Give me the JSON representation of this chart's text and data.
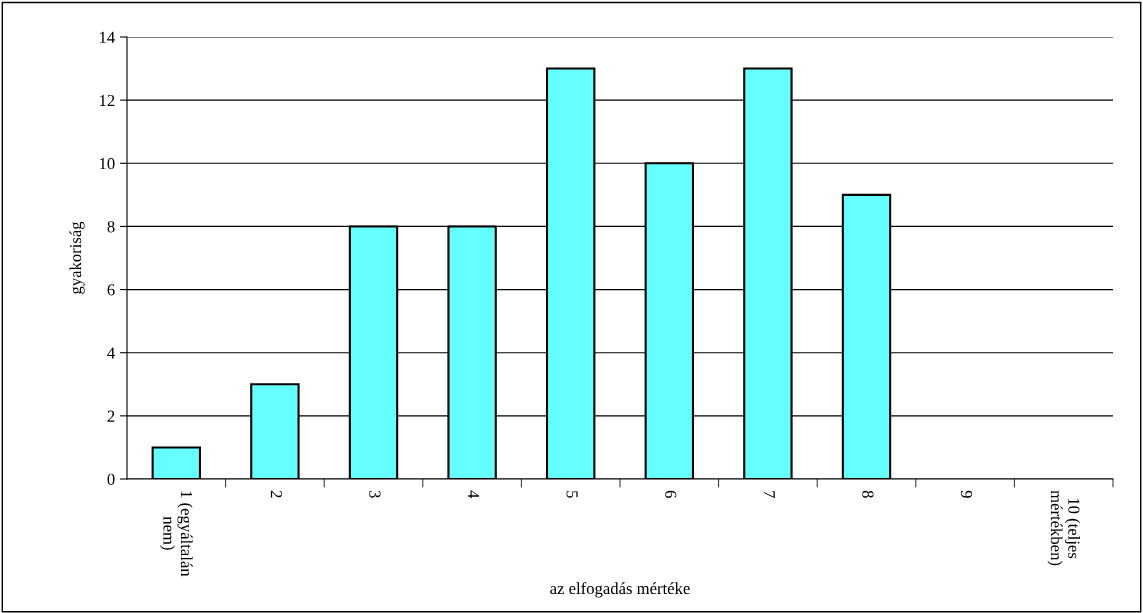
{
  "chart_data": {
    "type": "bar",
    "xlabel": "az elfogadás mértéke",
    "ylabel": "gyakoriság",
    "categories": [
      "1 (egyáltalán\nnem)",
      "2",
      "3",
      "4",
      "5",
      "6",
      "7",
      "8",
      "9",
      "10 (teljes\nmértékben)"
    ],
    "values": [
      1,
      3,
      8,
      8,
      13,
      10,
      13,
      9,
      0,
      0
    ],
    "color": "#66ffff",
    "ylim": [
      0,
      14
    ],
    "yticks": [
      0,
      2,
      4,
      6,
      8,
      10,
      12,
      14
    ],
    "grid": "y",
    "legend": false
  }
}
